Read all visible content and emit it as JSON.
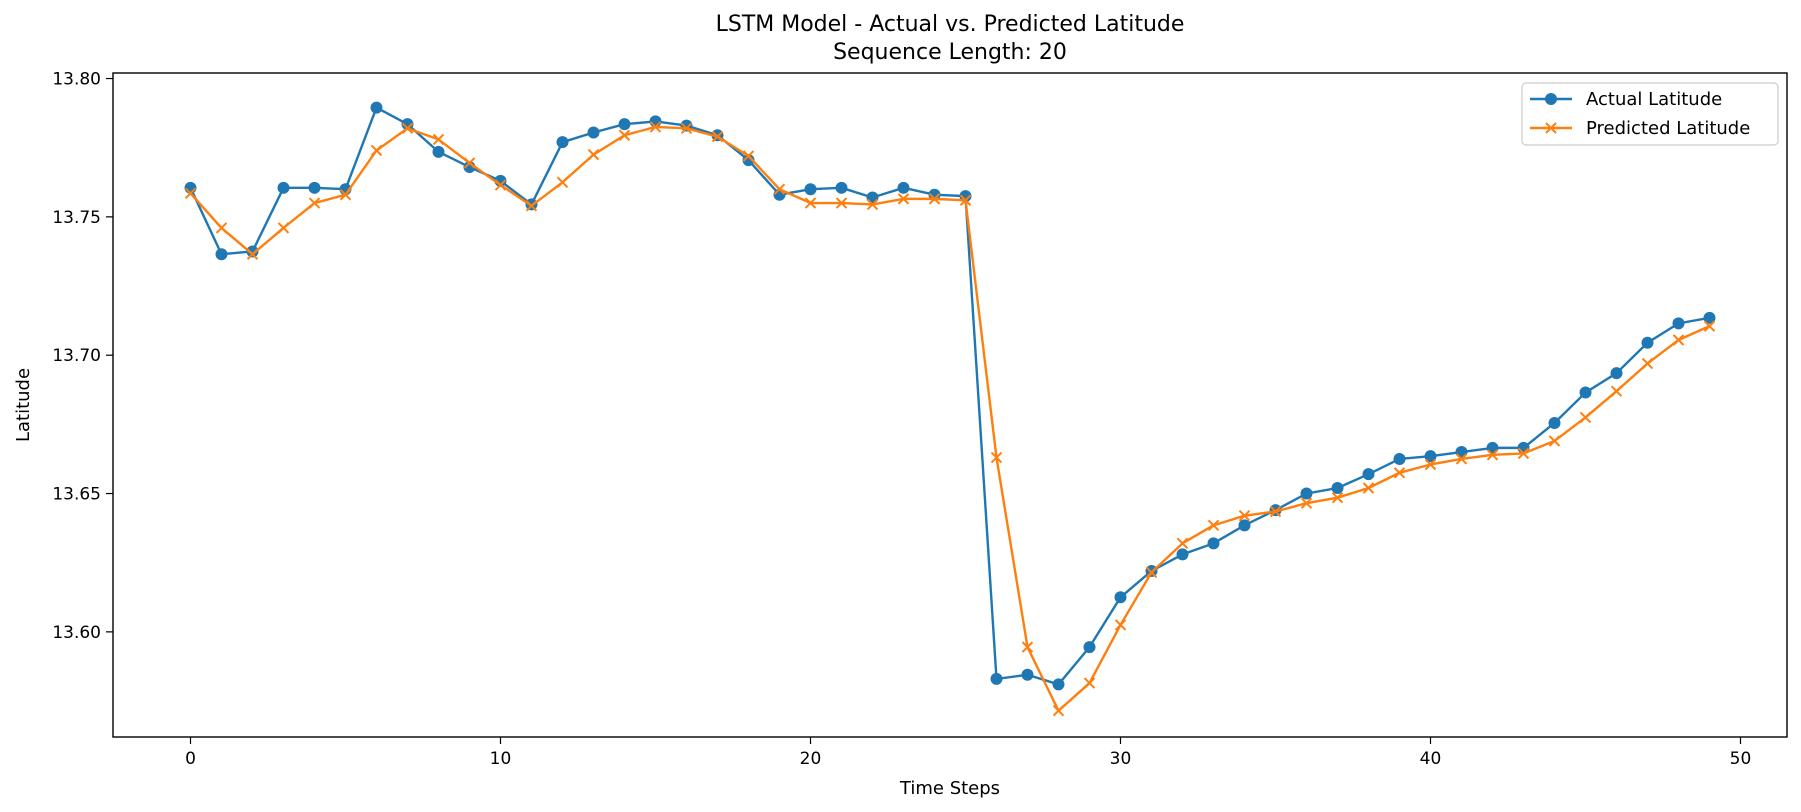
{
  "chart_data": {
    "type": "line",
    "title": "LSTM Model - Actual vs. Predicted Latitude",
    "subtitle": "Sequence Length: 20",
    "xlabel": "Time Steps",
    "ylabel": "Latitude",
    "xlim": [
      -2.5,
      51.5
    ],
    "ylim": [
      13.562,
      13.802
    ],
    "xticks": [
      0,
      10,
      20,
      30,
      40,
      50
    ],
    "xtick_labels": [
      "0",
      "10",
      "20",
      "30",
      "40",
      "50"
    ],
    "yticks": [
      13.6,
      13.65,
      13.7,
      13.75,
      13.8
    ],
    "ytick_labels": [
      "13.60",
      "13.65",
      "13.70",
      "13.75",
      "13.80"
    ],
    "grid": false,
    "legend_position": "top-right",
    "x": [
      0,
      1,
      2,
      3,
      4,
      5,
      6,
      7,
      8,
      9,
      10,
      11,
      12,
      13,
      14,
      15,
      16,
      17,
      18,
      19,
      20,
      21,
      22,
      23,
      24,
      25,
      26,
      27,
      28,
      29,
      30,
      31,
      32,
      33,
      34,
      35,
      36,
      37,
      38,
      39,
      40,
      41,
      42,
      43,
      44,
      45,
      46,
      47,
      48,
      49
    ],
    "series": [
      {
        "name": "Actual Latitude",
        "color": "#1f77b4",
        "marker": "circle",
        "values": [
          13.7605,
          13.7365,
          13.7375,
          13.7605,
          13.7605,
          13.76,
          13.7895,
          13.7835,
          13.7735,
          13.768,
          13.763,
          13.7545,
          13.777,
          13.7805,
          13.7835,
          13.7845,
          13.783,
          13.7795,
          13.7705,
          13.758,
          13.76,
          13.7605,
          13.757,
          13.7605,
          13.758,
          13.7575,
          13.583,
          13.5845,
          13.581,
          13.5945,
          13.6125,
          13.622,
          13.628,
          13.632,
          13.6385,
          13.644,
          13.65,
          13.652,
          13.657,
          13.6625,
          13.6635,
          13.665,
          13.6665,
          13.6665,
          13.6755,
          13.6865,
          13.6935,
          13.7045,
          13.7115,
          13.7135
        ]
      },
      {
        "name": "Predicted Latitude",
        "color": "#ff7f0e",
        "marker": "x",
        "values": [
          13.7585,
          13.746,
          13.7365,
          13.746,
          13.755,
          13.758,
          13.774,
          13.782,
          13.778,
          13.7695,
          13.7615,
          13.754,
          13.7625,
          13.7725,
          13.7795,
          13.7825,
          13.782,
          13.779,
          13.772,
          13.76,
          13.755,
          13.755,
          13.7545,
          13.7565,
          13.7565,
          13.756,
          13.663,
          13.5945,
          13.5715,
          13.5815,
          13.6025,
          13.6215,
          13.632,
          13.6385,
          13.642,
          13.6435,
          13.6465,
          13.6485,
          13.652,
          13.6575,
          13.6605,
          13.6625,
          13.664,
          13.6645,
          13.669,
          13.6775,
          13.687,
          13.697,
          13.7055,
          13.7105
        ]
      }
    ]
  }
}
